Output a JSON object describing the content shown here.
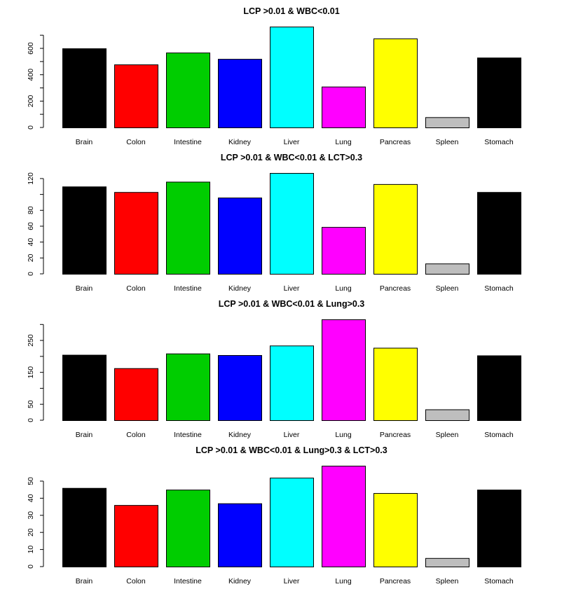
{
  "chart_data": [
    {
      "type": "bar",
      "title": "LCP >0.01 & WBC<0.01",
      "categories": [
        "Brain",
        "Colon",
        "Intestine",
        "Kidney",
        "Liver",
        "Lung",
        "Pancreas",
        "Spleen",
        "Stomach"
      ],
      "values": [
        600,
        478,
        568,
        520,
        765,
        310,
        675,
        78,
        530
      ],
      "ylim": [
        0,
        765
      ],
      "yticks": [
        0,
        200,
        400,
        600
      ],
      "yminor": [
        100,
        300,
        500,
        700
      ],
      "colors": [
        "#000000",
        "#ff0000",
        "#00cd00",
        "#0000ff",
        "#00ffff",
        "#ff00ff",
        "#ffff00",
        "#bebebe",
        "#000000"
      ]
    },
    {
      "type": "bar",
      "title": "LCP >0.01 & WBC<0.01 & LCT>0.3",
      "categories": [
        "Brain",
        "Colon",
        "Intestine",
        "Kidney",
        "Liver",
        "Lung",
        "Pancreas",
        "Spleen",
        "Stomach"
      ],
      "values": [
        110,
        103,
        116,
        96,
        127,
        59,
        113,
        13,
        103
      ],
      "ylim": [
        0,
        127
      ],
      "yticks": [
        0,
        20,
        40,
        60,
        80,
        120
      ],
      "yminor": [
        100
      ],
      "colors": [
        "#000000",
        "#ff0000",
        "#00cd00",
        "#0000ff",
        "#00ffff",
        "#ff00ff",
        "#ffff00",
        "#bebebe",
        "#000000"
      ]
    },
    {
      "type": "bar",
      "title": "LCP >0.01 & WBC<0.01 & Lung>0.3",
      "categories": [
        "Brain",
        "Colon",
        "Intestine",
        "Kidney",
        "Liver",
        "Lung",
        "Pancreas",
        "Spleen",
        "Stomach"
      ],
      "values": [
        205,
        163,
        209,
        204,
        234,
        316,
        227,
        34,
        203
      ],
      "ylim": [
        0,
        316
      ],
      "yticks": [
        0,
        50,
        150,
        250
      ],
      "yminor": [
        100,
        200,
        300
      ],
      "colors": [
        "#000000",
        "#ff0000",
        "#00cd00",
        "#0000ff",
        "#00ffff",
        "#ff00ff",
        "#ffff00",
        "#bebebe",
        "#000000"
      ]
    },
    {
      "type": "bar",
      "title": "LCP >0.01 & WBC<0.01 & Lung>0.3 & LCT>0.3",
      "categories": [
        "Brain",
        "Colon",
        "Intestine",
        "Kidney",
        "Liver",
        "Lung",
        "Pancreas",
        "Spleen",
        "Stomach"
      ],
      "values": [
        46,
        36,
        45,
        37,
        52,
        59,
        43,
        5,
        45
      ],
      "ylim": [
        0,
        59
      ],
      "yticks": [
        0,
        10,
        20,
        30,
        40,
        50
      ],
      "yminor": [],
      "colors": [
        "#000000",
        "#ff0000",
        "#00cd00",
        "#0000ff",
        "#00ffff",
        "#ff00ff",
        "#ffff00",
        "#bebebe",
        "#000000"
      ]
    }
  ]
}
